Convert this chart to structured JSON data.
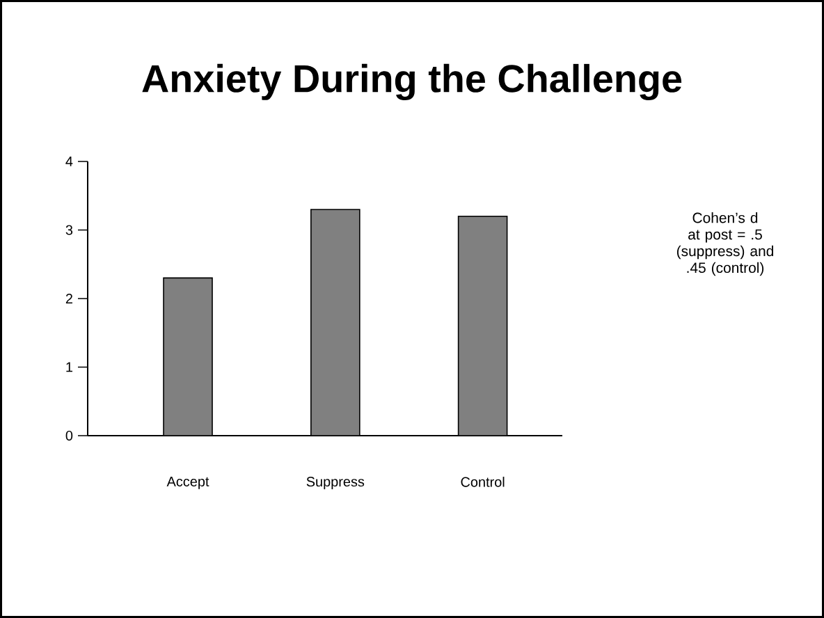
{
  "chart_data": {
    "type": "bar",
    "title": "Anxiety During the Challenge",
    "categories": [
      "Accept",
      "Suppress",
      "Control"
    ],
    "values": [
      2.3,
      3.3,
      3.2
    ],
    "color": "#808080",
    "ylim": [
      0,
      4
    ],
    "yticks": [
      0,
      1,
      2,
      3,
      4
    ],
    "annotations": [
      "Cohen’s d at post = .5 (suppress) and .45 (control)"
    ]
  }
}
